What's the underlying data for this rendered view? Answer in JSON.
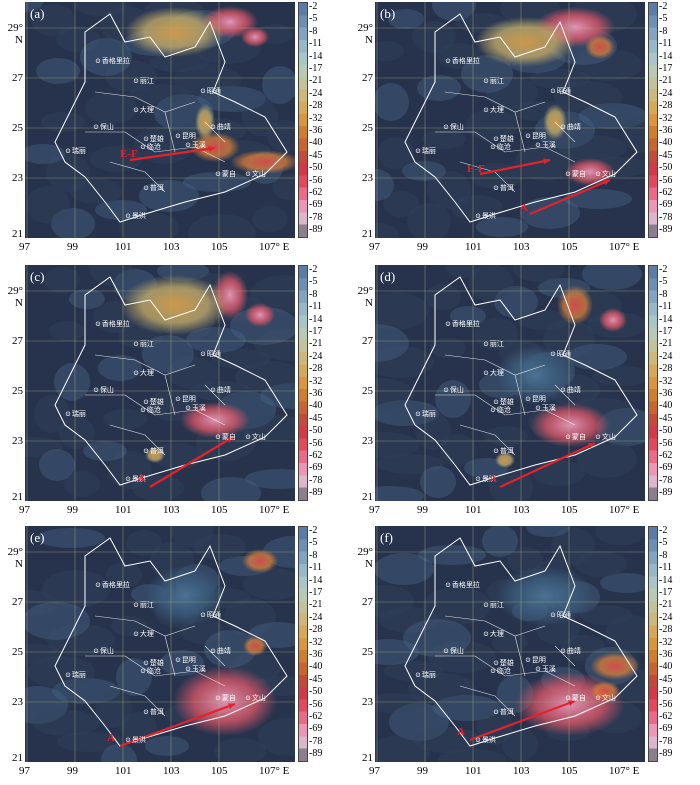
{
  "panels": [
    {
      "label": "(a)"
    },
    {
      "label": "(b)"
    },
    {
      "label": "(c)"
    },
    {
      "label": "(d)"
    },
    {
      "label": "(e)"
    },
    {
      "label": "(f)"
    }
  ],
  "axes": {
    "y_ticks": [
      "29° N",
      "27",
      "25",
      "23",
      "21"
    ],
    "x_ticks": [
      "97",
      "99",
      "101",
      "103",
      "105",
      "107° E"
    ]
  },
  "colorbar": {
    "ticks": [
      "-2",
      "-5",
      "-8",
      "-11",
      "-14",
      "-17",
      "-21",
      "-24",
      "-28",
      "-32",
      "-36",
      "-40",
      "-45",
      "-50",
      "-56",
      "-62",
      "-69",
      "-78",
      "-89"
    ],
    "colors": [
      "#5b7ca6",
      "#6e8fb4",
      "#82a4c0",
      "#98b8c9",
      "#a9c5c8",
      "#b8c9b6",
      "#c2c39a",
      "#cdb77a",
      "#d6a95a",
      "#d9963f",
      "#cf7d30",
      "#c8642f",
      "#c24a3b",
      "#d23a47",
      "#e24a5c",
      "#eb6a86",
      "#ec96b4",
      "#dcb7cc",
      "#8b7f8e"
    ]
  },
  "cities": [
    "香格里拉",
    "丽江",
    "大理",
    "保山",
    "临沧",
    "瑞丽",
    "昆明",
    "曲靖",
    "玉溪",
    "楚雄",
    "昭通",
    "蒙自",
    "文山",
    "普洱",
    "景洪"
  ],
  "systems": {
    "a": [
      "E-F"
    ],
    "b": [
      "E-F",
      "A"
    ],
    "c": [
      "A"
    ],
    "d": [
      "A"
    ],
    "e": [
      "A"
    ],
    "f": [
      "A"
    ]
  }
}
